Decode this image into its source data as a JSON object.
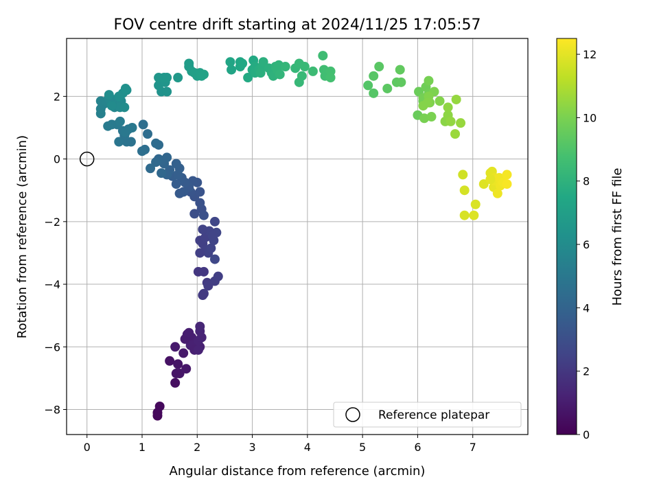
{
  "chart_data": {
    "type": "scatter",
    "title": "FOV centre drift starting at 2024/11/25 17:05:57",
    "xlabel": "Angular distance from reference (arcmin)",
    "ylabel": "Rotation from reference (arcmin)",
    "xlim": [
      -0.37,
      8.0
    ],
    "ylim": [
      -8.8,
      3.85
    ],
    "xticks": [
      0,
      1,
      2,
      3,
      4,
      5,
      6,
      7
    ],
    "yticks": [
      -8,
      -6,
      -4,
      -2,
      0,
      2
    ],
    "grid": true,
    "colormap": "viridis",
    "colorbar": {
      "label": "Hours from first FF file",
      "range": [
        0,
        12.5
      ],
      "ticks": [
        0,
        2,
        4,
        6,
        8,
        10,
        12
      ]
    },
    "reference": {
      "x": 0,
      "y": 0,
      "label": "Reference platepar"
    },
    "legend": {
      "location": "lower-right",
      "entries": [
        "Reference platepar"
      ]
    },
    "points": [
      [
        1.28,
        -8.2,
        0.2
      ],
      [
        1.28,
        -8.1,
        0.25
      ],
      [
        1.32,
        -7.9,
        0.3
      ],
      [
        1.6,
        -7.15,
        0.5
      ],
      [
        1.5,
        -6.45,
        0.6
      ],
      [
        1.65,
        -6.55,
        0.7
      ],
      [
        1.68,
        -6.85,
        0.75
      ],
      [
        1.8,
        -6.7,
        0.8
      ],
      [
        1.62,
        -6.85,
        0.7
      ],
      [
        1.75,
        -6.2,
        0.85
      ],
      [
        1.6,
        -6.0,
        0.9
      ],
      [
        1.82,
        -5.6,
        1.0
      ],
      [
        1.9,
        -5.7,
        1.05
      ],
      [
        1.95,
        -5.9,
        1.1
      ],
      [
        2.05,
        -6.0,
        1.1
      ],
      [
        1.88,
        -5.95,
        1.15
      ],
      [
        2.02,
        -5.8,
        1.2
      ],
      [
        2.08,
        -5.7,
        1.25
      ],
      [
        2.05,
        -5.5,
        1.3
      ],
      [
        2.05,
        -5.35,
        1.35
      ],
      [
        1.78,
        -5.75,
        1.0
      ],
      [
        1.95,
        -6.1,
        1.1
      ],
      [
        2.02,
        -6.1,
        1.2
      ],
      [
        1.85,
        -5.55,
        1.05
      ],
      [
        2.02,
        -3.6,
        2.0
      ],
      [
        2.12,
        -3.6,
        2.05
      ],
      [
        2.18,
        -3.95,
        2.1
      ],
      [
        2.12,
        -4.3,
        2.15
      ],
      [
        2.1,
        -4.35,
        2.1
      ],
      [
        2.2,
        -4.05,
        2.2
      ],
      [
        2.32,
        -3.9,
        2.25
      ],
      [
        2.38,
        -3.75,
        2.3
      ],
      [
        2.05,
        -2.6,
        2.3
      ],
      [
        2.1,
        -2.7,
        2.35
      ],
      [
        2.15,
        -2.9,
        2.4
      ],
      [
        2.2,
        -3.0,
        2.45
      ],
      [
        2.15,
        -2.5,
        2.4
      ],
      [
        2.25,
        -2.85,
        2.5
      ],
      [
        2.3,
        -2.6,
        2.55
      ],
      [
        2.35,
        -2.35,
        2.6
      ],
      [
        2.32,
        -2.0,
        2.65
      ],
      [
        2.22,
        -2.3,
        2.5
      ],
      [
        2.1,
        -2.25,
        2.45
      ],
      [
        2.32,
        -3.2,
        2.7
      ],
      [
        2.05,
        -3.0,
        2.35
      ],
      [
        2.28,
        -2.45,
        2.55
      ],
      [
        1.95,
        -1.75,
        3.0
      ],
      [
        2.08,
        -1.6,
        3.05
      ],
      [
        2.12,
        -1.8,
        3.1
      ],
      [
        2.05,
        -1.4,
        3.15
      ],
      [
        1.95,
        -1.2,
        3.2
      ],
      [
        2.05,
        -1.05,
        3.25
      ],
      [
        1.88,
        -1.05,
        3.3
      ],
      [
        2.0,
        -0.75,
        3.35
      ],
      [
        1.92,
        -0.7,
        3.4
      ],
      [
        1.85,
        -0.9,
        3.45
      ],
      [
        1.75,
        -1.05,
        3.5
      ],
      [
        1.68,
        -1.1,
        3.5
      ],
      [
        1.78,
        -0.75,
        3.55
      ],
      [
        1.72,
        -0.6,
        3.6
      ],
      [
        1.62,
        -0.8,
        3.65
      ],
      [
        1.55,
        -0.55,
        3.7
      ],
      [
        1.65,
        -0.5,
        3.75
      ],
      [
        1.68,
        -0.3,
        3.8
      ],
      [
        1.62,
        -0.15,
        3.85
      ],
      [
        1.5,
        -0.35,
        3.9
      ],
      [
        1.45,
        -0.5,
        4.0
      ],
      [
        1.4,
        -0.15,
        4.05
      ],
      [
        1.38,
        -0.05,
        4.1
      ],
      [
        1.3,
        0.0,
        4.15
      ],
      [
        1.45,
        0.05,
        4.1
      ],
      [
        1.35,
        -0.45,
        4.2
      ],
      [
        1.25,
        -0.1,
        4.25
      ],
      [
        1.15,
        -0.3,
        4.3
      ],
      [
        1.3,
        0.45,
        4.35
      ],
      [
        1.25,
        0.5,
        4.4
      ],
      [
        1.1,
        0.8,
        4.45
      ],
      [
        1.02,
        1.1,
        4.5
      ],
      [
        1.05,
        0.3,
        4.5
      ],
      [
        1.0,
        0.25,
        4.55
      ],
      [
        0.8,
        0.55,
        4.7
      ],
      [
        0.72,
        0.55,
        4.75
      ],
      [
        0.68,
        0.75,
        4.8
      ],
      [
        0.58,
        0.55,
        4.85
      ],
      [
        0.65,
        0.9,
        4.9
      ],
      [
        0.75,
        0.95,
        4.95
      ],
      [
        0.82,
        1.0,
        5.0
      ],
      [
        0.7,
        0.85,
        5.0
      ],
      [
        0.55,
        1.1,
        5.05
      ],
      [
        0.45,
        1.1,
        5.1
      ],
      [
        0.38,
        1.05,
        5.15
      ],
      [
        0.6,
        1.2,
        5.2
      ],
      [
        0.25,
        1.45,
        5.4
      ],
      [
        0.25,
        1.6,
        5.45
      ],
      [
        0.3,
        1.75,
        5.5
      ],
      [
        0.25,
        1.85,
        5.55
      ],
      [
        0.35,
        1.85,
        5.6
      ],
      [
        0.45,
        1.75,
        5.65
      ],
      [
        0.5,
        1.65,
        5.7
      ],
      [
        0.4,
        1.95,
        5.75
      ],
      [
        0.52,
        1.9,
        5.8
      ],
      [
        0.62,
        1.85,
        5.85
      ],
      [
        0.6,
        1.65,
        5.9
      ],
      [
        0.45,
        1.7,
        5.95
      ],
      [
        0.68,
        1.65,
        6.0
      ],
      [
        0.4,
        2.05,
        6.05
      ],
      [
        0.58,
        2.0,
        6.1
      ],
      [
        0.65,
        2.1,
        6.15
      ],
      [
        0.72,
        2.2,
        6.2
      ],
      [
        0.7,
        2.25,
        6.25
      ],
      [
        1.35,
        2.15,
        6.3
      ],
      [
        1.45,
        2.15,
        6.35
      ],
      [
        1.3,
        2.35,
        6.4
      ],
      [
        1.42,
        2.45,
        6.45
      ],
      [
        1.3,
        2.6,
        6.5
      ],
      [
        1.4,
        2.6,
        6.55
      ],
      [
        1.45,
        2.6,
        6.6
      ],
      [
        1.65,
        2.6,
        6.65
      ],
      [
        1.85,
        2.95,
        6.8
      ],
      [
        1.85,
        3.05,
        6.85
      ],
      [
        1.9,
        2.8,
        6.9
      ],
      [
        2.0,
        2.65,
        6.95
      ],
      [
        1.95,
        2.75,
        7.0
      ],
      [
        2.05,
        2.75,
        7.05
      ],
      [
        2.08,
        2.65,
        7.1
      ],
      [
        2.12,
        2.7,
        7.15
      ],
      [
        2.62,
        2.85,
        7.3
      ],
      [
        2.6,
        3.1,
        7.35
      ],
      [
        2.78,
        3.1,
        7.4
      ],
      [
        2.78,
        2.95,
        7.45
      ],
      [
        2.82,
        3.05,
        7.5
      ],
      [
        2.92,
        2.6,
        7.55
      ],
      [
        3.02,
        3.15,
        7.55
      ],
      [
        3.0,
        2.85,
        7.6
      ],
      [
        3.05,
        2.95,
        7.65
      ],
      [
        3.05,
        2.75,
        7.7
      ],
      [
        3.12,
        2.85,
        7.75
      ],
      [
        3.18,
        2.95,
        7.8
      ],
      [
        3.2,
        3.1,
        7.85
      ],
      [
        3.3,
        2.9,
        7.9
      ],
      [
        3.35,
        2.75,
        7.95
      ],
      [
        3.38,
        2.65,
        8.0
      ],
      [
        3.42,
        2.95,
        8.05
      ],
      [
        3.45,
        2.85,
        8.1
      ],
      [
        3.48,
        3.0,
        8.1
      ],
      [
        3.5,
        2.7,
        8.15
      ],
      [
        3.6,
        2.95,
        8.2
      ],
      [
        3.78,
        2.9,
        8.25
      ],
      [
        3.85,
        3.05,
        8.3
      ],
      [
        3.85,
        2.45,
        8.3
      ],
      [
        3.9,
        2.65,
        8.35
      ],
      [
        3.95,
        2.95,
        8.35
      ],
      [
        3.15,
        2.75,
        7.85
      ],
      [
        4.1,
        2.8,
        8.5
      ],
      [
        4.28,
        3.3,
        8.55
      ],
      [
        4.3,
        2.85,
        8.6
      ],
      [
        4.32,
        2.65,
        8.65
      ],
      [
        4.35,
        2.75,
        8.65
      ],
      [
        4.42,
        2.8,
        8.7
      ],
      [
        4.42,
        2.6,
        8.75
      ],
      [
        5.1,
        2.35,
        9.1
      ],
      [
        5.2,
        2.1,
        9.15
      ],
      [
        5.2,
        2.65,
        9.2
      ],
      [
        5.3,
        2.95,
        9.25
      ],
      [
        5.45,
        2.25,
        9.3
      ],
      [
        5.62,
        2.45,
        9.35
      ],
      [
        5.7,
        2.45,
        9.4
      ],
      [
        5.68,
        2.85,
        9.45
      ],
      [
        6.0,
        1.4,
        9.6
      ],
      [
        6.02,
        2.15,
        9.65
      ],
      [
        6.1,
        1.85,
        9.7
      ],
      [
        6.15,
        2.3,
        9.75
      ],
      [
        6.2,
        2.1,
        9.8
      ],
      [
        6.1,
        1.95,
        9.85
      ],
      [
        6.2,
        2.5,
        9.9
      ],
      [
        6.12,
        1.3,
        9.95
      ],
      [
        6.25,
        1.35,
        10.0
      ],
      [
        6.3,
        2.15,
        10.05
      ],
      [
        6.22,
        1.8,
        10.1
      ],
      [
        6.4,
        1.85,
        10.15
      ],
      [
        6.2,
        2.0,
        10.15
      ],
      [
        6.1,
        1.7,
        10.2
      ],
      [
        6.5,
        1.2,
        10.3
      ],
      [
        6.55,
        1.4,
        10.35
      ],
      [
        6.55,
        1.65,
        10.4
      ],
      [
        6.6,
        1.2,
        10.45
      ],
      [
        6.7,
        1.9,
        10.5
      ],
      [
        6.78,
        1.15,
        10.55
      ],
      [
        6.68,
        0.8,
        10.6
      ],
      [
        6.18,
        1.8,
        10.2
      ],
      [
        6.82,
        -0.5,
        11.6
      ],
      [
        6.85,
        -1.0,
        11.7
      ],
      [
        6.85,
        -1.8,
        11.75
      ],
      [
        7.05,
        -1.45,
        11.8
      ],
      [
        7.02,
        -1.8,
        11.85
      ],
      [
        7.2,
        -0.8,
        11.9
      ],
      [
        7.32,
        -0.45,
        11.95
      ],
      [
        7.35,
        -0.4,
        12.0
      ],
      [
        7.38,
        -0.9,
        12.05
      ],
      [
        7.4,
        -0.6,
        12.1
      ],
      [
        7.4,
        -0.7,
        12.15
      ],
      [
        7.45,
        -1.1,
        12.2
      ],
      [
        7.48,
        -0.6,
        12.25
      ],
      [
        7.5,
        -0.85,
        12.25
      ],
      [
        7.55,
        -0.75,
        12.3
      ],
      [
        7.62,
        -0.5,
        12.35
      ],
      [
        7.62,
        -0.8,
        12.4
      ],
      [
        7.32,
        -0.65,
        12.0
      ]
    ]
  }
}
